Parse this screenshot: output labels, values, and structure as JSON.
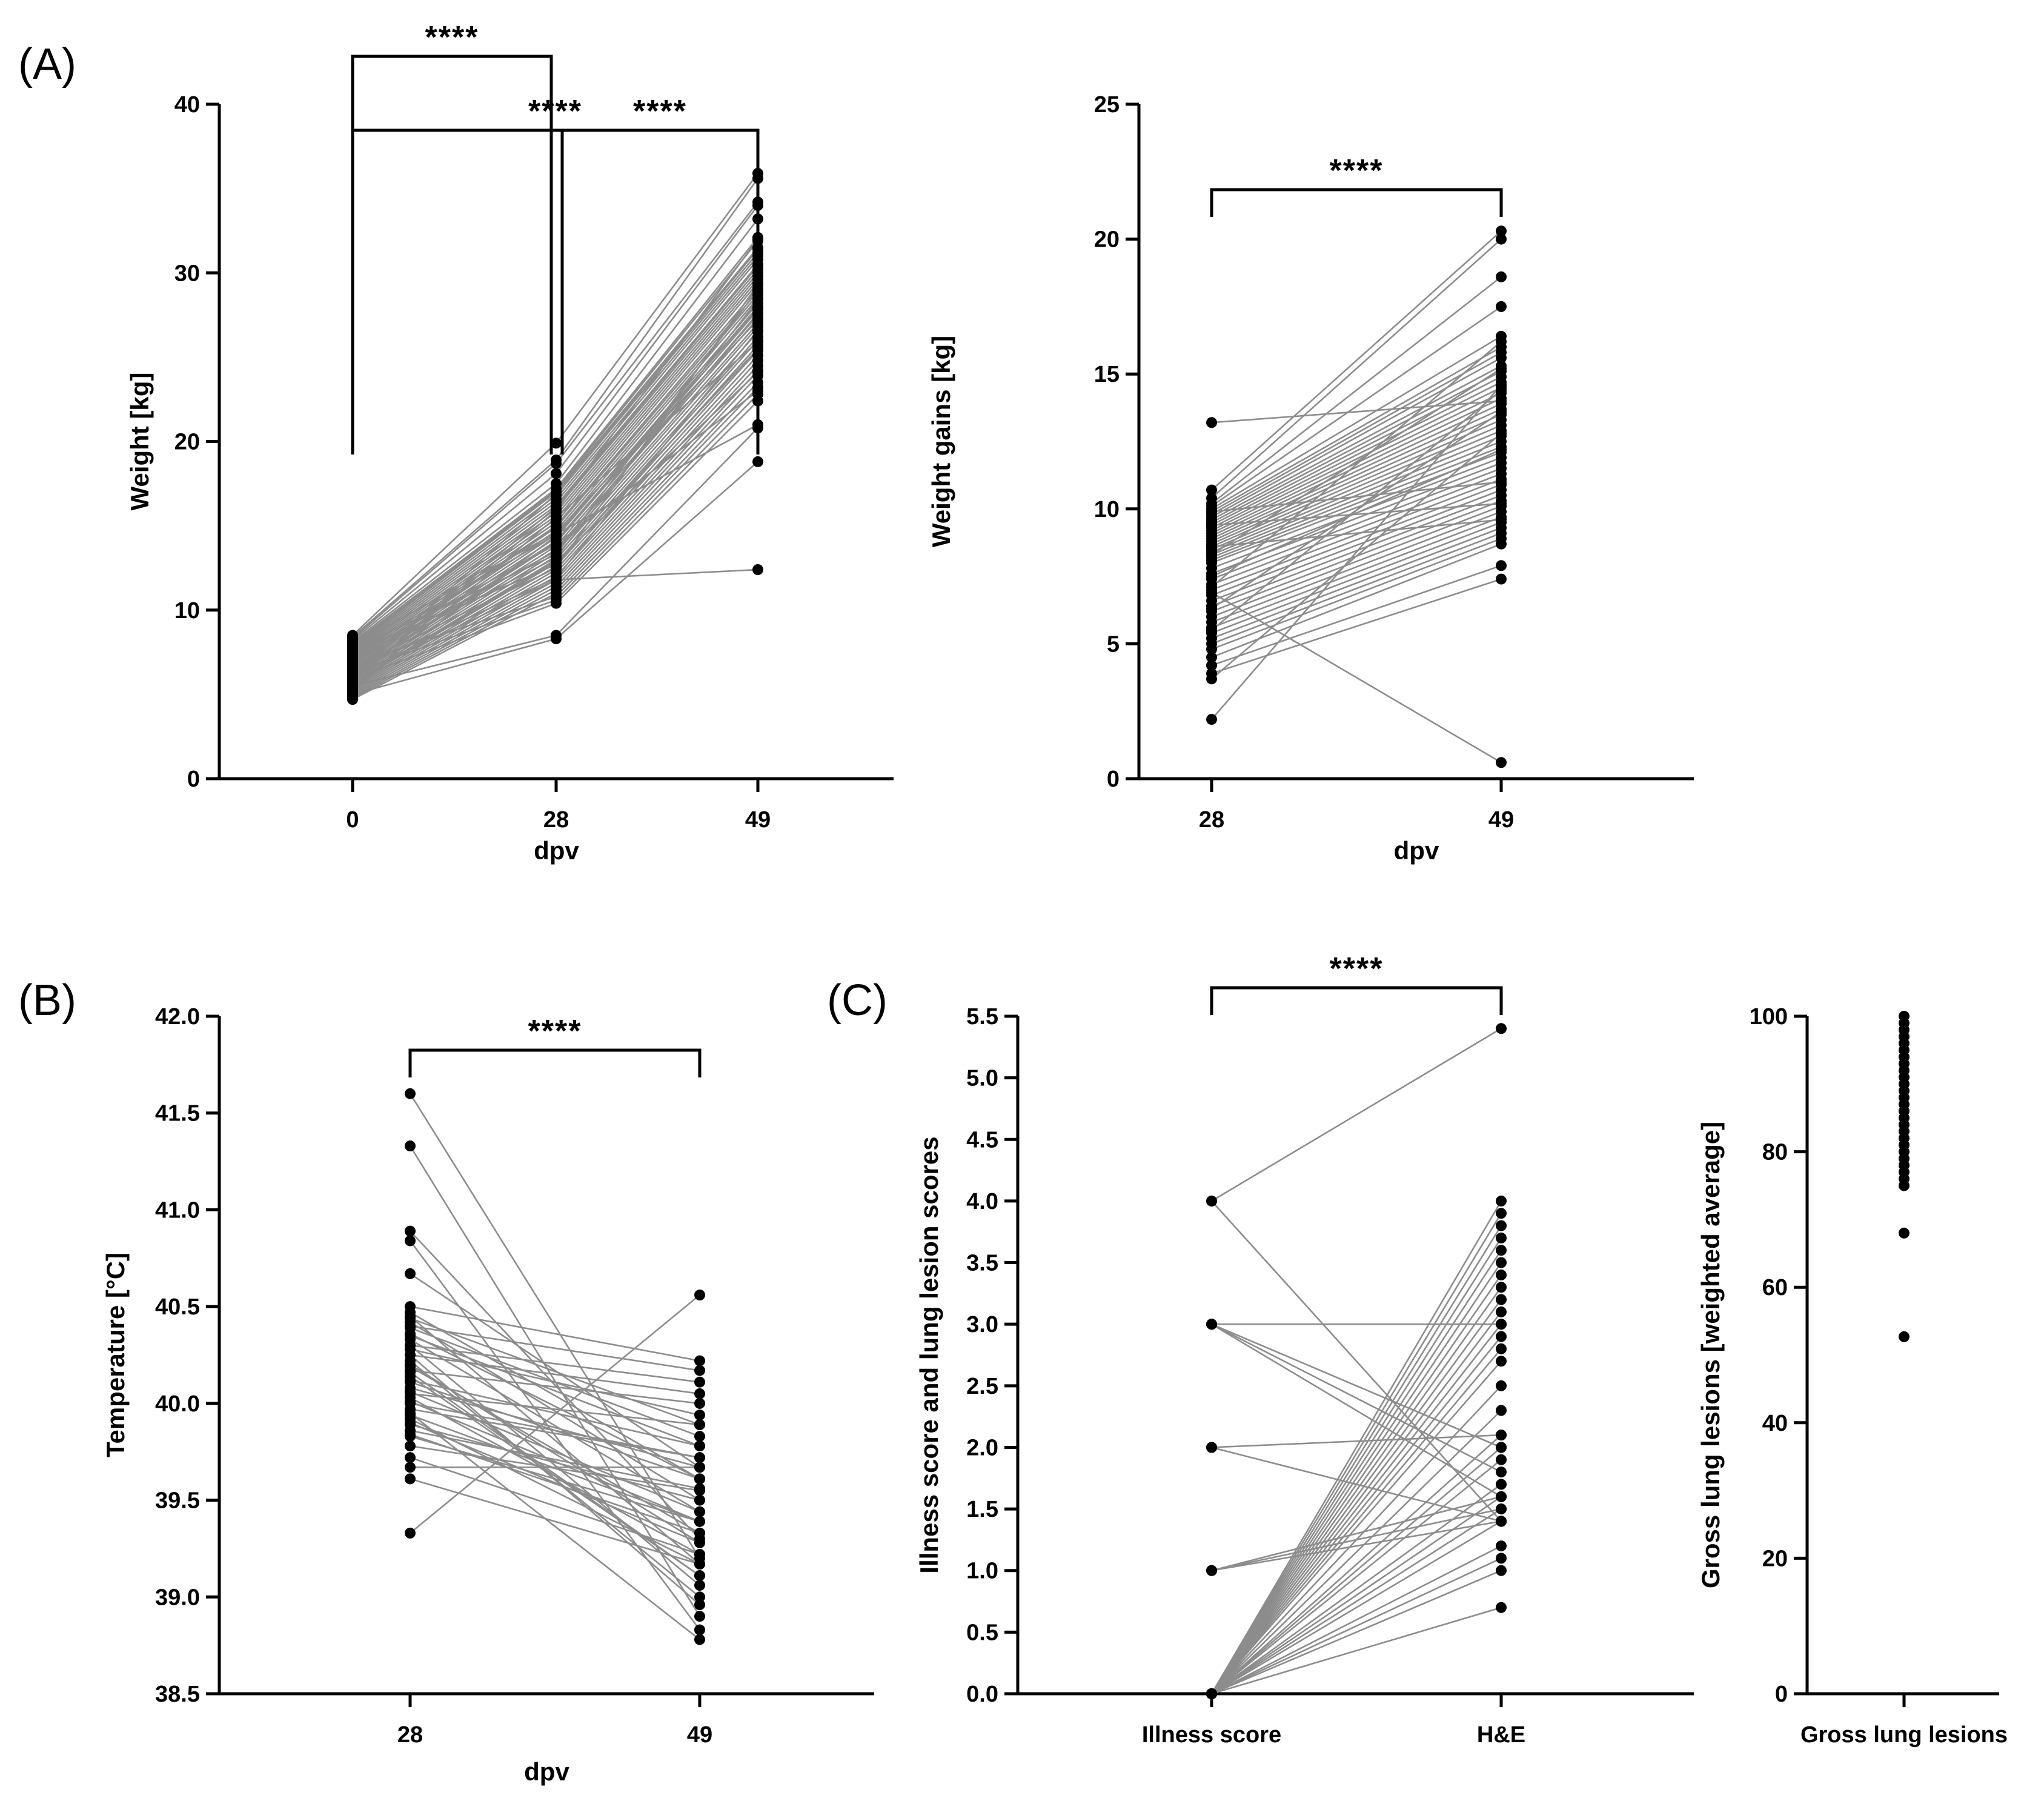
{
  "panels": {
    "A": "(A)",
    "B": "(B)",
    "C": "(C)"
  },
  "chart_data": [
    {
      "id": "weight",
      "type": "line",
      "xlabel": "dpv",
      "ylabel": "Weight [kg]",
      "ylim": [
        0,
        40
      ],
      "yticks": [
        "0",
        "10",
        "20",
        "30",
        "40"
      ],
      "categories": [
        "0",
        "28",
        "49"
      ],
      "significance": [
        {
          "from": 0,
          "to": 1,
          "label": "****"
        },
        {
          "from": 1,
          "to": 2,
          "label": "****"
        },
        {
          "from": 0,
          "to": 2,
          "label": "****"
        }
      ],
      "series": [
        [
          8.5,
          19.9,
          35.9
        ],
        [
          8.4,
          18.9,
          35.6
        ],
        [
          8.3,
          18.7,
          34.2
        ],
        [
          8.2,
          18.1,
          34.0
        ],
        [
          8.1,
          17.5,
          33.2
        ],
        [
          8.0,
          17.2,
          32.1
        ],
        [
          7.9,
          17.1,
          31.9
        ],
        [
          7.8,
          17.0,
          31.5
        ],
        [
          7.7,
          16.8,
          31.2
        ],
        [
          7.6,
          16.6,
          31.0
        ],
        [
          7.5,
          16.4,
          30.8
        ],
        [
          7.4,
          16.2,
          30.5
        ],
        [
          7.3,
          16.0,
          30.2
        ],
        [
          7.2,
          15.8,
          30.0
        ],
        [
          7.1,
          15.6,
          29.8
        ],
        [
          7.0,
          15.4,
          29.6
        ],
        [
          6.9,
          15.2,
          29.4
        ],
        [
          6.8,
          15.0,
          29.1
        ],
        [
          6.7,
          14.9,
          28.9
        ],
        [
          6.6,
          14.7,
          28.7
        ],
        [
          6.5,
          14.5,
          28.5
        ],
        [
          6.4,
          14.3,
          28.2
        ],
        [
          6.3,
          14.1,
          28.0
        ],
        [
          6.2,
          14.0,
          27.8
        ],
        [
          6.1,
          13.8,
          27.5
        ],
        [
          6.0,
          13.6,
          27.3
        ],
        [
          5.9,
          13.4,
          27.0
        ],
        [
          5.8,
          13.2,
          26.8
        ],
        [
          5.7,
          13.0,
          26.5
        ],
        [
          5.6,
          12.8,
          26.2
        ],
        [
          5.5,
          12.6,
          26.0
        ],
        [
          5.4,
          12.4,
          25.7
        ],
        [
          5.3,
          12.2,
          25.4
        ],
        [
          5.2,
          12.0,
          25.1
        ],
        [
          5.1,
          11.8,
          24.8
        ],
        [
          5.0,
          11.6,
          24.5
        ],
        [
          4.9,
          11.4,
          24.2
        ],
        [
          4.8,
          11.2,
          23.9
        ],
        [
          4.7,
          11.0,
          23.5
        ],
        [
          6.8,
          10.8,
          23.2
        ],
        [
          6.3,
          10.6,
          22.8
        ],
        [
          5.9,
          10.4,
          22.4
        ],
        [
          7.4,
          14.5,
          21.0
        ],
        [
          5.5,
          8.5,
          20.8
        ],
        [
          5.0,
          8.3,
          18.8
        ],
        [
          6.0,
          11.8,
          12.4
        ],
        [
          7.0,
          13.5,
          27.6
        ],
        [
          6.6,
          12.5,
          29.3
        ],
        [
          5.3,
          15.5,
          25.9
        ],
        [
          7.2,
          13.9,
          23.0
        ],
        [
          6.2,
          16.1,
          30.4
        ],
        [
          5.7,
          12.9,
          24.1
        ],
        [
          7.9,
          14.6,
          27.2
        ],
        [
          6.4,
          11.9,
          26.6
        ],
        [
          5.8,
          15.9,
          32.0
        ],
        [
          6.9,
          13.1,
          28.4
        ],
        [
          7.5,
          12.7,
          25.5
        ],
        [
          5.4,
          14.4,
          27.9
        ],
        [
          6.1,
          16.9,
          31.4
        ],
        [
          7.7,
          13.3,
          29.0
        ]
      ]
    },
    {
      "id": "gains",
      "type": "line",
      "xlabel": "dpv",
      "ylabel": "Weight gains [kg]",
      "ylim": [
        0,
        25
      ],
      "yticks": [
        "0",
        "5",
        "10",
        "15",
        "20",
        "25"
      ],
      "categories": [
        "28",
        "49"
      ],
      "significance": [
        {
          "from": 0,
          "to": 1,
          "label": "****"
        }
      ],
      "series": [
        [
          13.2,
          14.0
        ],
        [
          10.7,
          20.3
        ],
        [
          10.4,
          20.0
        ],
        [
          10.2,
          18.6
        ],
        [
          10.1,
          17.5
        ],
        [
          10.0,
          16.4
        ],
        [
          9.9,
          16.0
        ],
        [
          9.8,
          15.8
        ],
        [
          9.7,
          15.6
        ],
        [
          9.6,
          15.3
        ],
        [
          9.5,
          15.1
        ],
        [
          9.4,
          14.9
        ],
        [
          9.3,
          14.7
        ],
        [
          9.2,
          14.5
        ],
        [
          9.1,
          14.3
        ],
        [
          9.0,
          14.1
        ],
        [
          8.9,
          13.9
        ],
        [
          8.8,
          13.7
        ],
        [
          8.7,
          13.5
        ],
        [
          8.6,
          13.3
        ],
        [
          8.5,
          13.1
        ],
        [
          8.4,
          12.9
        ],
        [
          8.3,
          12.7
        ],
        [
          8.2,
          12.5
        ],
        [
          8.1,
          12.3
        ],
        [
          8.0,
          12.1
        ],
        [
          7.8,
          11.9
        ],
        [
          7.6,
          11.7
        ],
        [
          7.4,
          11.5
        ],
        [
          7.2,
          11.3
        ],
        [
          7.0,
          11.1
        ],
        [
          6.8,
          10.9
        ],
        [
          6.6,
          10.7
        ],
        [
          6.4,
          10.5
        ],
        [
          6.2,
          10.3
        ],
        [
          6.0,
          10.1
        ],
        [
          5.8,
          9.9
        ],
        [
          5.6,
          9.7
        ],
        [
          5.4,
          9.5
        ],
        [
          5.2,
          9.3
        ],
        [
          5.0,
          9.1
        ],
        [
          4.8,
          8.9
        ],
        [
          4.5,
          8.7
        ],
        [
          4.2,
          7.9
        ],
        [
          3.9,
          7.4
        ],
        [
          3.7,
          12.8
        ],
        [
          2.2,
          14.6
        ],
        [
          6.9,
          0.6
        ],
        [
          9.4,
          10.2
        ],
        [
          8.3,
          15.2
        ],
        [
          7.5,
          12.2
        ],
        [
          6.3,
          13.6
        ],
        [
          9.9,
          11.0
        ],
        [
          5.5,
          14.4
        ],
        [
          8.6,
          9.6
        ],
        [
          7.1,
          16.2
        ]
      ]
    },
    {
      "id": "temperature",
      "type": "line",
      "xlabel": "dpv",
      "ylabel": "Temperature [°C]",
      "ylim": [
        38.5,
        42.0
      ],
      "yticks": [
        "38.5",
        "39.0",
        "39.5",
        "40.0",
        "40.5",
        "41.0",
        "41.5",
        "42.0"
      ],
      "categories": [
        "28",
        "49"
      ],
      "significance": [
        {
          "from": 0,
          "to": 1,
          "label": "****"
        }
      ],
      "series": [
        [
          41.6,
          39.2
        ],
        [
          41.33,
          38.9
        ],
        [
          40.89,
          39.3
        ],
        [
          40.84,
          38.83
        ],
        [
          40.67,
          39.67
        ],
        [
          40.5,
          40.22
        ],
        [
          40.45,
          39.17
        ],
        [
          40.4,
          40.17
        ],
        [
          40.35,
          39.78
        ],
        [
          40.3,
          40.11
        ],
        [
          40.25,
          38.96
        ],
        [
          40.2,
          39.28
        ],
        [
          40.17,
          40.0
        ],
        [
          40.11,
          39.61
        ],
        [
          40.06,
          39.44
        ],
        [
          40.0,
          39.72
        ],
        [
          39.94,
          39.39
        ],
        [
          39.89,
          39.5
        ],
        [
          39.84,
          39.33
        ],
        [
          39.78,
          39.55
        ],
        [
          39.72,
          39.22
        ],
        [
          39.67,
          39.67
        ],
        [
          39.61,
          39.17
        ],
        [
          39.33,
          40.56
        ],
        [
          40.28,
          39.94
        ],
        [
          40.05,
          39.89
        ],
        [
          40.39,
          39.83
        ],
        [
          40.14,
          39.11
        ],
        [
          39.95,
          38.78
        ],
        [
          40.22,
          39.0
        ],
        [
          40.47,
          39.61
        ],
        [
          39.9,
          39.28
        ],
        [
          40.33,
          39.44
        ],
        [
          40.08,
          39.67
        ],
        [
          39.86,
          39.56
        ],
        [
          40.19,
          39.33
        ],
        [
          40.42,
          39.5
        ],
        [
          39.97,
          39.72
        ],
        [
          40.3,
          39.06
        ],
        [
          40.12,
          39.78
        ],
        [
          39.83,
          39.39
        ],
        [
          40.25,
          40.05
        ],
        [
          40.03,
          39.22
        ],
        [
          40.44,
          39.89
        ],
        [
          39.92,
          39.17
        ],
        [
          40.16,
          39.11
        ],
        [
          40.36,
          39.61
        ],
        [
          40.01,
          39.39
        ]
      ]
    },
    {
      "id": "lesions",
      "type": "line",
      "xlabel": "",
      "ylabel": "Illness score and lung lesion scores",
      "ylim": [
        0.0,
        5.5
      ],
      "yticks": [
        "0.0",
        "0.5",
        "1.0",
        "1.5",
        "2.0",
        "2.5",
        "3.0",
        "3.5",
        "4.0",
        "4.5",
        "5.0",
        "5.5"
      ],
      "categories": [
        "Illness score",
        "H&E"
      ],
      "significance": [
        {
          "from": 0,
          "to": 1,
          "label": "****"
        }
      ],
      "series": [
        [
          4,
          5.4
        ],
        [
          4,
          1.4
        ],
        [
          3,
          3.0
        ],
        [
          3,
          2.0
        ],
        [
          3,
          1.8
        ],
        [
          3,
          1.6
        ],
        [
          2,
          2.1
        ],
        [
          2,
          1.4
        ],
        [
          1,
          1.4
        ],
        [
          1,
          1.6
        ],
        [
          1,
          1.5
        ],
        [
          0,
          4.0
        ],
        [
          0,
          3.9
        ],
        [
          0,
          3.8
        ],
        [
          0,
          3.7
        ],
        [
          0,
          3.6
        ],
        [
          0,
          3.5
        ],
        [
          0,
          3.4
        ],
        [
          0,
          3.3
        ],
        [
          0,
          3.2
        ],
        [
          0,
          3.0
        ],
        [
          0,
          2.9
        ],
        [
          0,
          2.7
        ],
        [
          0,
          2.5
        ],
        [
          0,
          2.3
        ],
        [
          0,
          2.1
        ],
        [
          0,
          2.0
        ],
        [
          0,
          1.9
        ],
        [
          0,
          1.7
        ],
        [
          0,
          1.6
        ],
        [
          0,
          1.5
        ],
        [
          0,
          1.4
        ],
        [
          0,
          1.1
        ],
        [
          0,
          1.0
        ],
        [
          0,
          0.7
        ],
        [
          0,
          3.1
        ],
        [
          0,
          2.8
        ],
        [
          0,
          1.2
        ]
      ]
    },
    {
      "id": "gross",
      "type": "scatter",
      "xlabel": "",
      "ylabel": "Gross lung lesions [weighted average]",
      "ylim": [
        0,
        100
      ],
      "yticks": [
        "0",
        "20",
        "40",
        "60",
        "80",
        "100"
      ],
      "categories": [
        "Gross lung lesions"
      ],
      "values": [
        100,
        99,
        98,
        97,
        96,
        95,
        94,
        93,
        92,
        91,
        90,
        89,
        88,
        87,
        86,
        85,
        84,
        83,
        82,
        81,
        80,
        79,
        78,
        77,
        76,
        75,
        68,
        52.7
      ]
    }
  ]
}
